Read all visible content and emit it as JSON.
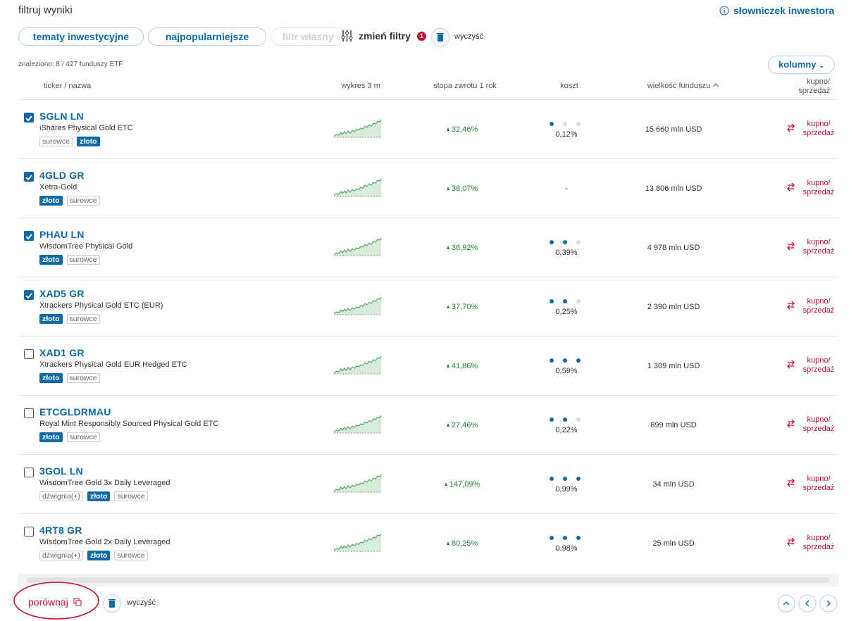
{
  "header": {
    "title": "filtruj wyniki",
    "glossary": "słowniczek inwestora"
  },
  "filters": {
    "buttons": [
      "tematy inwestycyjne",
      "najpopularniejsze",
      "filtr własny"
    ],
    "change": "zmień filtry",
    "badge": "1",
    "clear": "wyczyść"
  },
  "found": "znaleziono: 8 / 427 funduszy ETF",
  "columns_button": "kolumny",
  "table": {
    "headers": [
      "ticker / nazwa",
      "wykres 3 m",
      "stopa zwrotu 1 rok",
      "koszt",
      "wielkość funduszu",
      "kupno/ sprzedaż"
    ],
    "rows": [
      {
        "checked": true,
        "ticker": "SGLN LN",
        "name": "iShares Physical Gold ETC",
        "tags": [
          {
            "label": "surowce",
            "highlight": false
          },
          {
            "label": "złoto",
            "highlight": true
          }
        ],
        "return": "32,46%",
        "cost_level": 1,
        "cost": "0,12%",
        "size": "15 660 mln USD",
        "action": "kupno/ sprzedaż"
      },
      {
        "checked": true,
        "ticker": "4GLD GR",
        "name": "Xetra-Gold",
        "tags": [
          {
            "label": "złoto",
            "highlight": true
          },
          {
            "label": "surowce",
            "highlight": false
          }
        ],
        "return": "38,07%",
        "cost_level": null,
        "cost": "-",
        "size": "13 806 mln USD",
        "action": "kupno/ sprzedaż"
      },
      {
        "checked": true,
        "ticker": "PHAU LN",
        "name": "WisdomTree Physical Gold",
        "tags": [
          {
            "label": "złoto",
            "highlight": true
          },
          {
            "label": "surowce",
            "highlight": false
          }
        ],
        "return": "36,92%",
        "cost_level": 2,
        "cost": "0,39%",
        "size": "4 978 mln USD",
        "action": "kupno/ sprzedaż"
      },
      {
        "checked": true,
        "ticker": "XAD5 GR",
        "name": "Xtrackers Physical Gold ETC (EUR)",
        "tags": [
          {
            "label": "złoto",
            "highlight": true
          },
          {
            "label": "surowce",
            "highlight": false
          }
        ],
        "return": "37,70%",
        "cost_level": 2,
        "cost": "0,25%",
        "size": "2 390 mln USD",
        "action": "kupno/ sprzedaż"
      },
      {
        "checked": false,
        "ticker": "XAD1 GR",
        "name": "Xtrackers Physical Gold EUR Hedged ETC",
        "tags": [
          {
            "label": "złoto",
            "highlight": true
          },
          {
            "label": "surowce",
            "highlight": false
          }
        ],
        "return": "41,86%",
        "cost_level": 3,
        "cost": "0,59%",
        "size": "1 309 mln USD",
        "action": "kupno/ sprzedaż"
      },
      {
        "checked": false,
        "ticker": "ETCGLDRMAU",
        "name": "Royal Mint Responsibly Sourced Physical Gold ETC",
        "tags": [
          {
            "label": "złoto",
            "highlight": true
          },
          {
            "label": "surowce",
            "highlight": false
          }
        ],
        "return": "27,46%",
        "cost_level": 2,
        "cost": "0,22%",
        "size": "899 mln USD",
        "action": "kupno/ sprzedaż"
      },
      {
        "checked": false,
        "ticker": "3GOL LN",
        "name": "WisdomTree Gold 3x Daily Leveraged",
        "tags": [
          {
            "label": "dźwignia(+)",
            "highlight": false
          },
          {
            "label": "złoto",
            "highlight": true
          },
          {
            "label": "surowce",
            "highlight": false
          }
        ],
        "return": "147,09%",
        "cost_level": 3,
        "cost": "0,99%",
        "size": "34 mln USD",
        "action": "kupno/ sprzedaż"
      },
      {
        "checked": false,
        "ticker": "4RT8 GR",
        "name": "WisdomTree Gold 2x Daily Leveraged",
        "tags": [
          {
            "label": "dźwignia(+)",
            "highlight": false
          },
          {
            "label": "złoto",
            "highlight": true
          },
          {
            "label": "surowce",
            "highlight": false
          }
        ],
        "return": "80,25%",
        "cost_level": 3,
        "cost": "0,98%",
        "size": "25 mln USD",
        "action": "kupno/ sprzedaż"
      }
    ]
  },
  "footer": {
    "compare": "porównaj",
    "clear": "wyczyść"
  }
}
